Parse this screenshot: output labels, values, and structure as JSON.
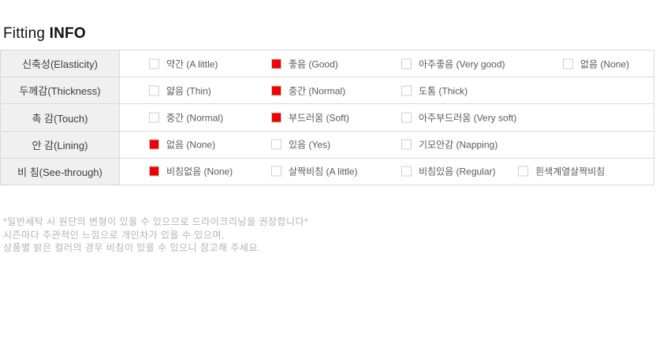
{
  "title": {
    "regular": "Fitting",
    "bold": "INFO"
  },
  "table": {
    "rows": [
      {
        "header": "신축성(Elasticity)",
        "options": [
          {
            "label": "약간 (A little)",
            "checked": false
          },
          {
            "label": "좋음 (Good)",
            "checked": true
          },
          {
            "label": "아주좋음 (Very good)",
            "checked": false
          },
          {
            "label": "없음 (None)",
            "checked": false
          }
        ]
      },
      {
        "header": "두께감(Thickness)",
        "options": [
          {
            "label": "얇음 (Thin)",
            "checked": false
          },
          {
            "label": "중간 (Normal)",
            "checked": true
          },
          {
            "label": "도톰 (Thick)",
            "checked": false
          }
        ]
      },
      {
        "header": "촉 감(Touch)",
        "options": [
          {
            "label": "중간 (Normal)",
            "checked": false
          },
          {
            "label": "부드러움 (Soft)",
            "checked": true
          },
          {
            "label": "아주부드러움 (Very soft)",
            "checked": false
          }
        ]
      },
      {
        "header": "안 감(Lining)",
        "options": [
          {
            "label": "없음 (None)",
            "checked": true
          },
          {
            "label": "있음 (Yes)",
            "checked": false
          },
          {
            "label": "기모안감 (Napping)",
            "checked": false
          }
        ]
      },
      {
        "header": "비 침(See-through)",
        "options": [
          {
            "label": "비침없음 (None)",
            "checked": true
          },
          {
            "label": "살짝비침 (A little)",
            "checked": false
          },
          {
            "label": "비침있음 (Regular)",
            "checked": false
          },
          {
            "label": "흰색계열살짝비침",
            "checked": false
          }
        ]
      }
    ]
  },
  "footnotes": [
    "*일반세탁 시 원단의 변형이 있을 수 있으므로 드라이크리닝을 권장합니다*",
    "시즌마다 주관적인 느낌으로 개인차가 있을 수 있으며,",
    "상품별 밝은 컬러의 경우 비침이 있을 수 있으니 참고해 주세요."
  ],
  "colors": {
    "checked_red": "#ee0000",
    "border_gray": "#d9d9d9",
    "header_bg": "#f0f0f0"
  }
}
